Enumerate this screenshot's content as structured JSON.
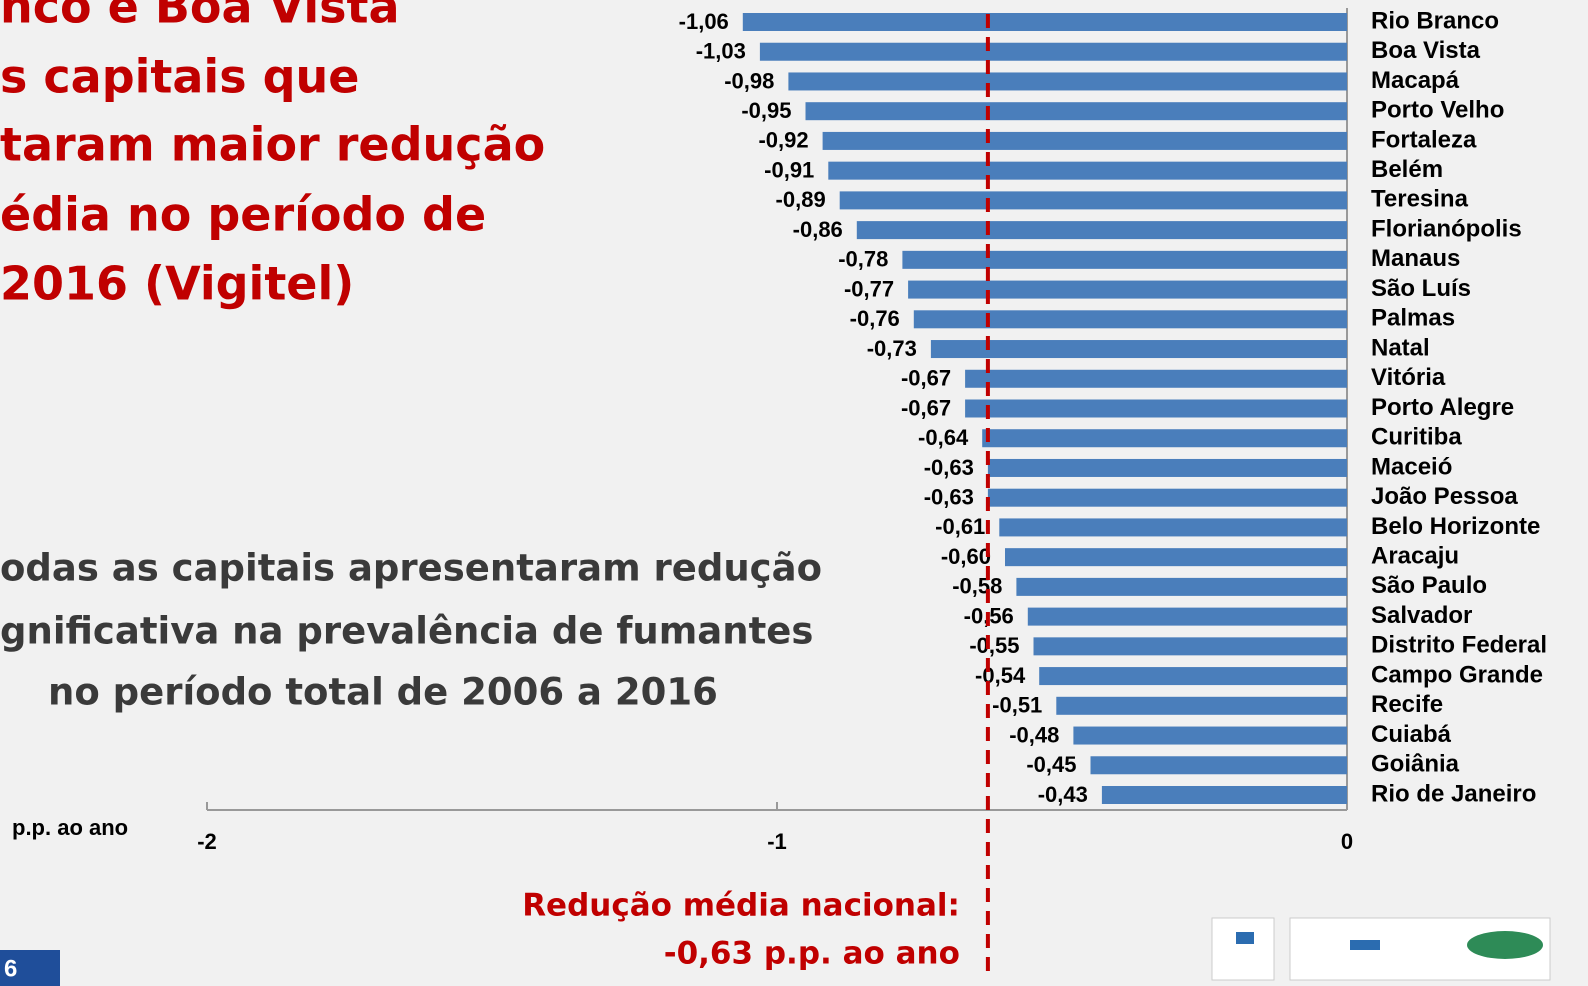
{
  "chart_data": {
    "type": "bar",
    "orientation": "horizontal",
    "title_lines": [
      "nco e Boa Vista",
      "s capitais que",
      "taram maior redução",
      "édia no período de",
      "2016 (Vigitel)"
    ],
    "subtitle_lines": [
      "odas as capitais apresentaram redução",
      "gnificativa na prevalência de fumantes",
      "no período total de 2006 a 2016"
    ],
    "x_label": "p.p. ao ano",
    "categories": [
      "Rio Branco",
      "Boa Vista",
      "Macapá",
      "Porto Velho",
      "Fortaleza",
      "Belém",
      "Teresina",
      "Florianópolis",
      "Manaus",
      "São Luís",
      "Palmas",
      "Natal",
      "Vitória",
      "Porto Alegre",
      "Curitiba",
      "Maceió",
      "João Pessoa",
      "Belo Horizonte",
      "Aracaju",
      "São Paulo",
      "Salvador",
      "Distrito Federal",
      "Campo Grande",
      "Recife",
      "Cuiabá",
      "Goiânia",
      "Rio de Janeiro"
    ],
    "values": [
      -1.06,
      -1.03,
      -0.98,
      -0.95,
      -0.92,
      -0.91,
      -0.89,
      -0.86,
      -0.78,
      -0.77,
      -0.76,
      -0.73,
      -0.67,
      -0.67,
      -0.64,
      -0.63,
      -0.63,
      -0.61,
      -0.6,
      -0.58,
      -0.56,
      -0.55,
      -0.54,
      -0.51,
      -0.48,
      -0.45,
      -0.43
    ],
    "value_labels": [
      "-1,06",
      "-1,03",
      "-0,98",
      "-0,95",
      "-0,92",
      "-0,91",
      "-0,89",
      "-0,86",
      "-0,78",
      "-0,77",
      "-0,76",
      "-0,73",
      "-0,67",
      "-0,67",
      "-0,64",
      "-0,63",
      "-0,63",
      "-0,61",
      "-0,60",
      "-0,58",
      "-0,56",
      "-0,55",
      "-0,54",
      "-0,51",
      "-0,48",
      "-0,45",
      "-0,43"
    ],
    "color": "#4a7ebb",
    "xlim": [
      -2,
      0
    ],
    "xticks": [
      -2,
      -1,
      0
    ],
    "reference_line": {
      "value": -0.63,
      "color": "#c00000",
      "label_lines": [
        "Redução média nacional:",
        "-0,63 p.p. ao ano"
      ]
    },
    "page_number": "6"
  }
}
